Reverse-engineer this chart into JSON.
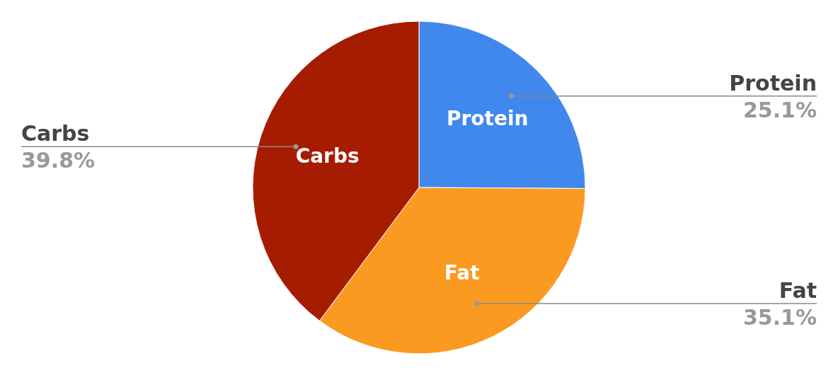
{
  "chart_data": {
    "type": "pie",
    "categories": [
      "Protein",
      "Fat",
      "Carbs"
    ],
    "values": [
      25.1,
      35.1,
      39.8
    ],
    "colors": [
      "#4088ee",
      "#fb9a21",
      "#a61c00"
    ],
    "value_labels": [
      "25.1%",
      "35.1%",
      "39.8%"
    ]
  }
}
